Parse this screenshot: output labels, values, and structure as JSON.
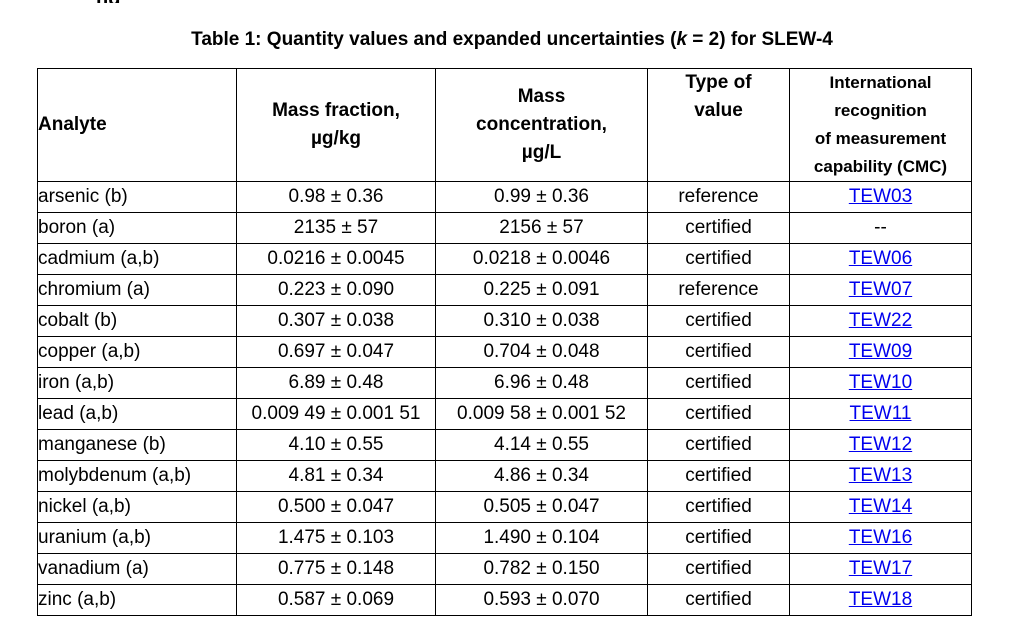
{
  "top_fragment": "ng",
  "caption": {
    "prefix": "Table 1: Quantity values and expanded uncertainties (",
    "k": "k",
    "middle": " = 2) for SLEW-4"
  },
  "headers": {
    "analyte": "Analyte",
    "mass_fraction": [
      "Mass fraction,",
      "µg/kg"
    ],
    "mass_concentration": [
      "Mass",
      "concentration,",
      "µg/L"
    ],
    "type_of_value": [
      "Type of",
      "value"
    ],
    "cmc": [
      "International",
      "recognition",
      "of measurement",
      "capability (CMC)"
    ]
  },
  "rows": [
    {
      "analyte": "arsenic (b)",
      "mass_fraction": "0.98 ± 0.36",
      "mass_concentration": "0.99 ± 0.36",
      "type": "reference",
      "cmc": "TEW03",
      "cmc_link": true
    },
    {
      "analyte": "boron (a)",
      "mass_fraction": "2135 ± 57",
      "mass_concentration": "2156 ± 57",
      "type": "certified",
      "cmc": "--",
      "cmc_link": false
    },
    {
      "analyte": "cadmium (a,b)",
      "mass_fraction": "0.0216 ± 0.0045",
      "mass_concentration": "0.0218 ± 0.0046",
      "type": "certified",
      "cmc": "TEW06",
      "cmc_link": true
    },
    {
      "analyte": "chromium (a)",
      "mass_fraction": "0.223 ± 0.090",
      "mass_concentration": "0.225 ± 0.091",
      "type": "reference",
      "cmc": "TEW07",
      "cmc_link": true
    },
    {
      "analyte": "cobalt (b)",
      "mass_fraction": "0.307 ± 0.038",
      "mass_concentration": "0.310 ± 0.038",
      "type": "certified",
      "cmc": "TEW22",
      "cmc_link": true
    },
    {
      "analyte": "copper (a,b)",
      "mass_fraction": "0.697 ± 0.047",
      "mass_concentration": "0.704 ± 0.048",
      "type": "certified",
      "cmc": "TEW09",
      "cmc_link": true
    },
    {
      "analyte": "iron (a,b)",
      "mass_fraction": "6.89 ± 0.48",
      "mass_concentration": "6.96 ± 0.48",
      "type": "certified",
      "cmc": "TEW10",
      "cmc_link": true
    },
    {
      "analyte": "lead (a,b)",
      "mass_fraction": "0.009 49 ± 0.001 51",
      "mass_concentration": "0.009 58 ± 0.001 52",
      "type": "certified",
      "cmc": "TEW11",
      "cmc_link": true
    },
    {
      "analyte": "manganese (b)",
      "mass_fraction": "4.10 ± 0.55",
      "mass_concentration": "4.14 ± 0.55",
      "type": "certified",
      "cmc": "TEW12",
      "cmc_link": true
    },
    {
      "analyte": "molybdenum (a,b)",
      "mass_fraction": "4.81 ± 0.34",
      "mass_concentration": "4.86 ± 0.34",
      "type": "certified",
      "cmc": "TEW13",
      "cmc_link": true
    },
    {
      "analyte": "nickel (a,b)",
      "mass_fraction": "0.500 ± 0.047",
      "mass_concentration": "0.505 ± 0.047",
      "type": "certified",
      "cmc": "TEW14",
      "cmc_link": true
    },
    {
      "analyte": "uranium (a,b)",
      "mass_fraction": "1.475 ± 0.103",
      "mass_concentration": "1.490 ± 0.104",
      "type": "certified",
      "cmc": "TEW16",
      "cmc_link": true
    },
    {
      "analyte": "vanadium (a)",
      "mass_fraction": "0.775 ± 0.148",
      "mass_concentration": "0.782 ± 0.150",
      "type": "certified",
      "cmc": "TEW17",
      "cmc_link": true
    },
    {
      "analyte": "zinc (a,b)",
      "mass_fraction": "0.587 ± 0.069",
      "mass_concentration": "0.593 ± 0.070",
      "type": "certified",
      "cmc": "TEW18",
      "cmc_link": true
    }
  ],
  "colors": {
    "link": "#0000ee",
    "text": "#000000",
    "border": "#000000"
  }
}
